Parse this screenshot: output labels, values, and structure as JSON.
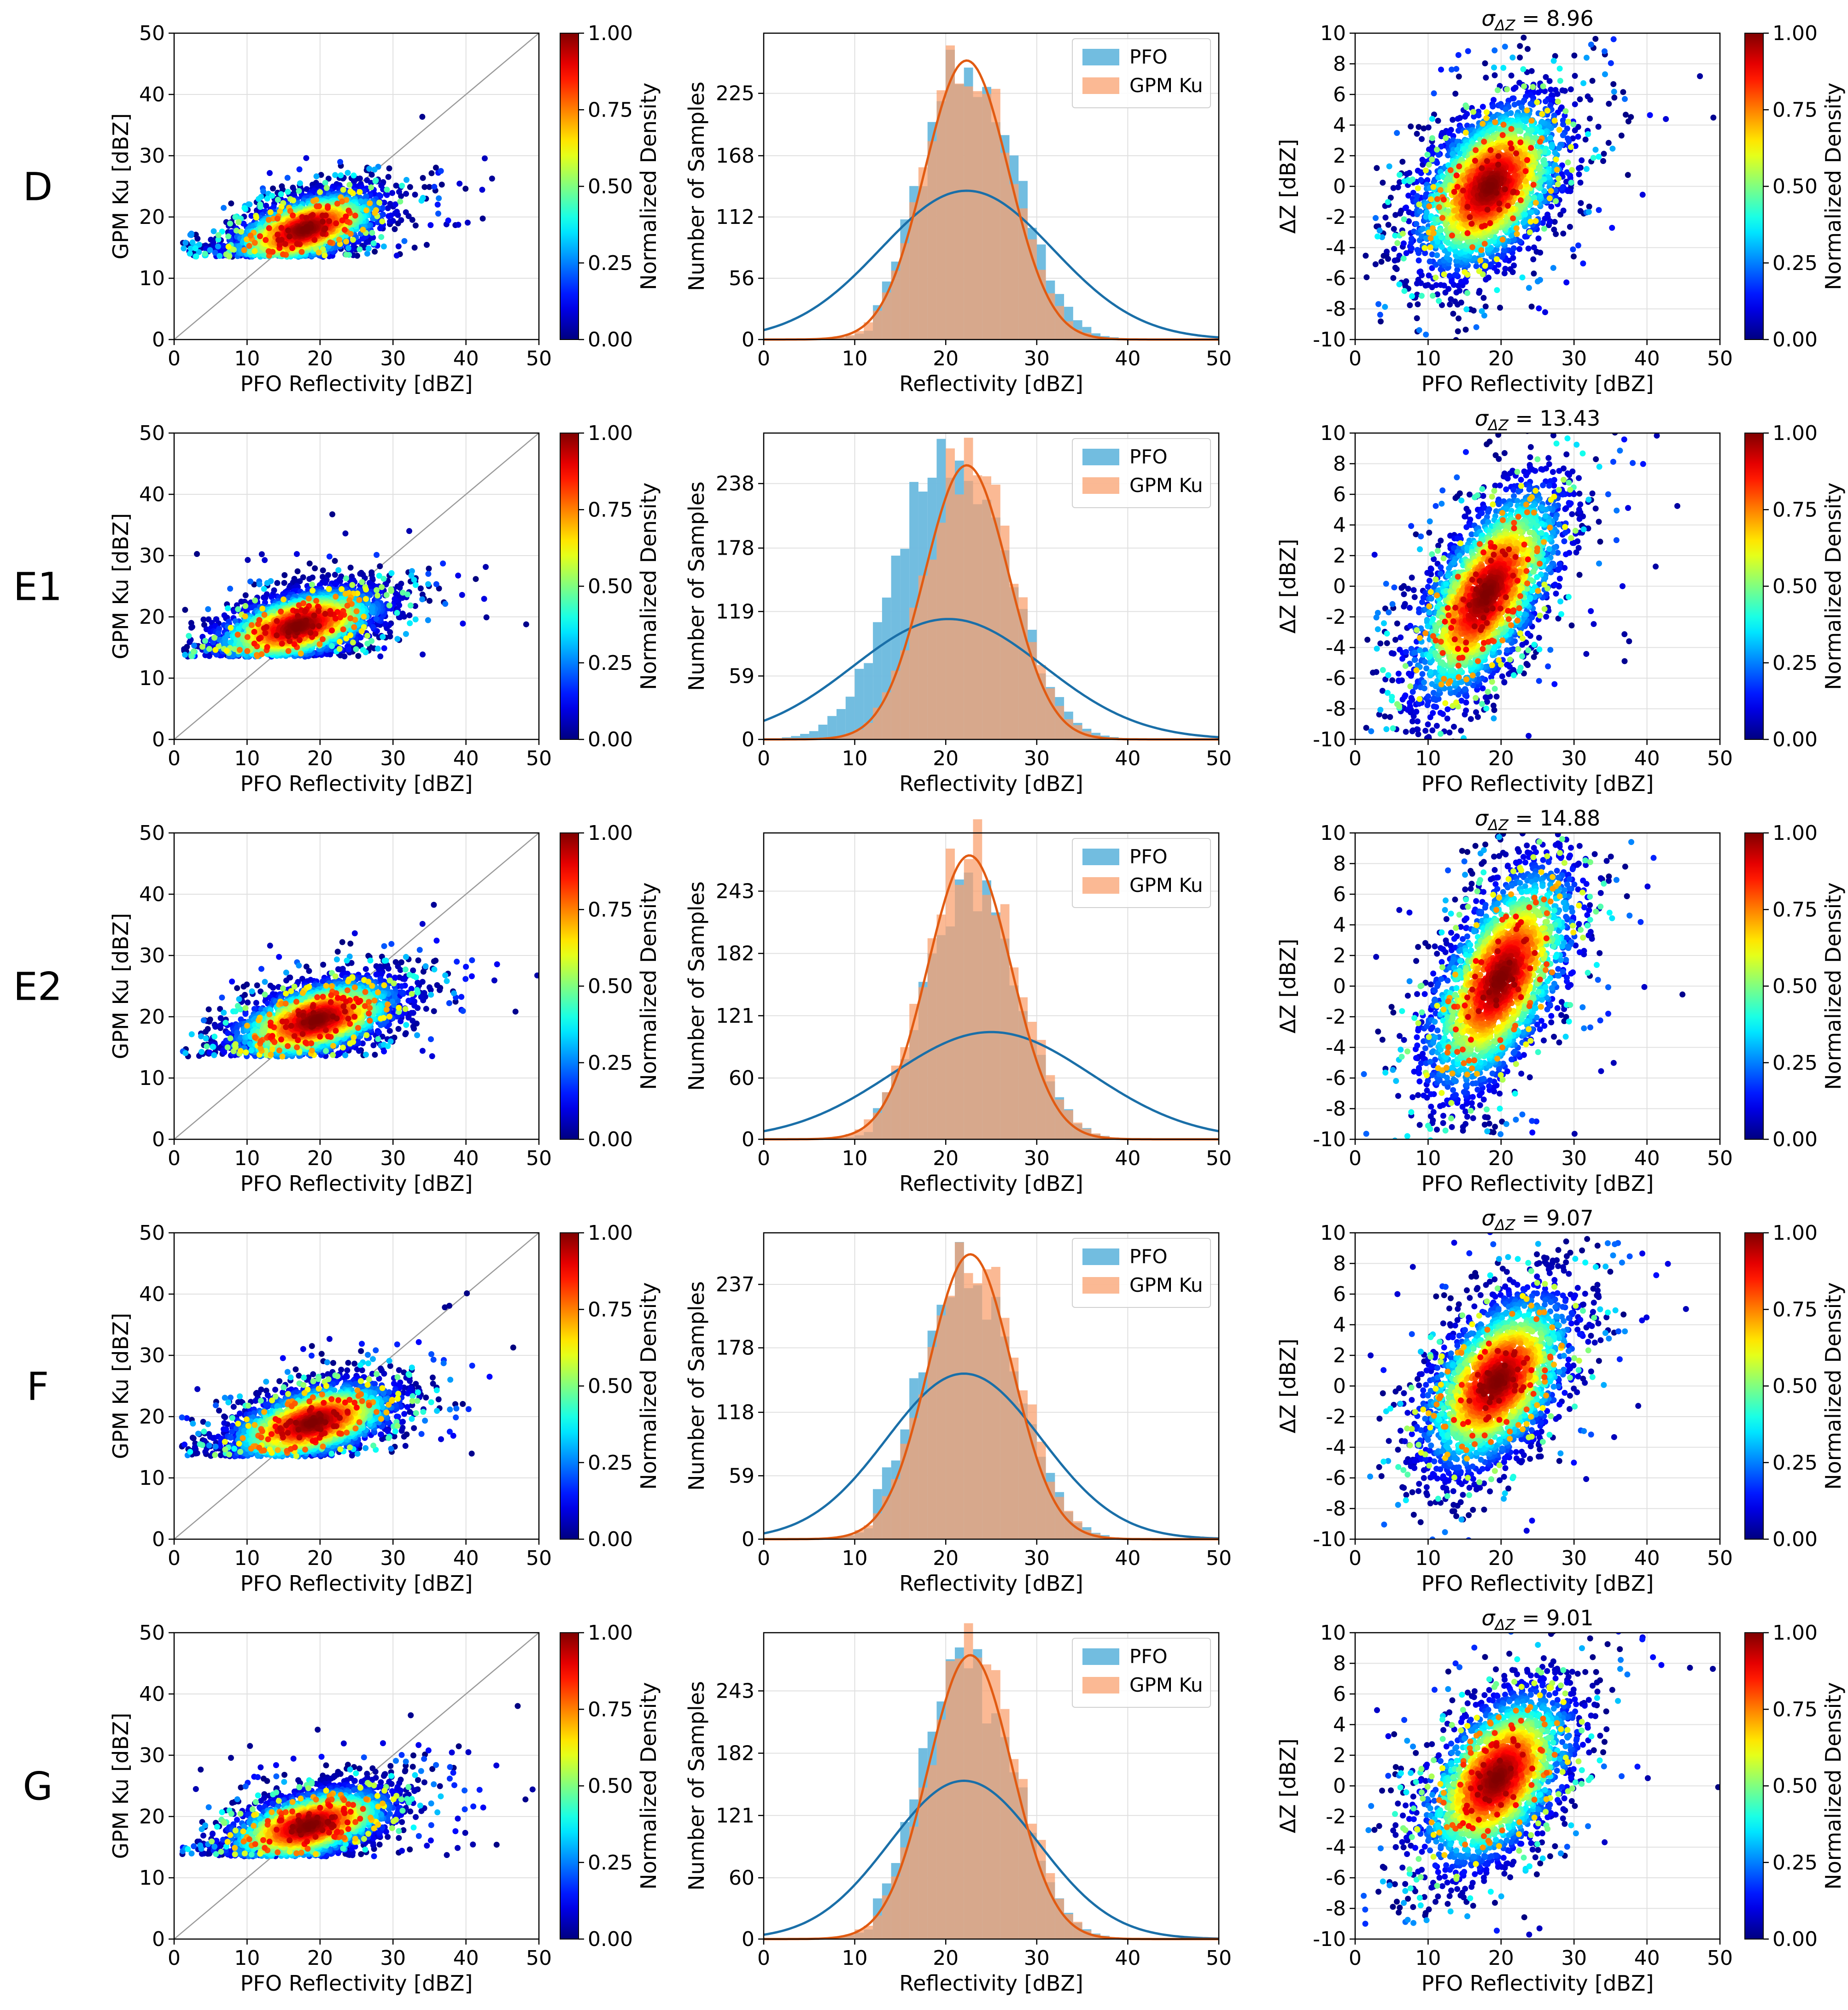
{
  "figure": {
    "row_labels": [
      "D",
      "E1",
      "E2",
      "F",
      "G"
    ],
    "colors": {
      "pfo_bar": "#6ab9de",
      "gpm_bar": "#f9a270",
      "pfo_line": "#1a6fa8",
      "gpm_line": "#e15b12",
      "grid": "#e0e0e0",
      "identity_line": "#9a9a9a"
    },
    "colorbar": {
      "label": "Normalized Density",
      "ticks": [
        "0.00",
        "0.25",
        "0.50",
        "0.75",
        "1.00"
      ],
      "colormap": "jet"
    }
  },
  "chart_data": [
    {
      "type": "scatter",
      "row": "D",
      "panel": "scatter",
      "xlabel": "PFO Reflectivity [dBZ]",
      "ylabel": "GPM Ku [dBZ]",
      "xlim": [
        0,
        50
      ],
      "ylim": [
        0,
        50
      ],
      "xticks": [
        0,
        10,
        20,
        30,
        40,
        50
      ],
      "yticks": [
        0,
        10,
        20,
        30,
        40,
        50
      ],
      "density_center": [
        18,
        18
      ],
      "density_spread": [
        5,
        3.3
      ],
      "correlation": 0.55,
      "identity_line": true,
      "grid": true
    },
    {
      "type": "bar",
      "row": "D",
      "panel": "histogram",
      "xlabel": "Reflectivity [dBZ]",
      "ylabel": "Number of Samples",
      "xlim": [
        0,
        50
      ],
      "ylim": [
        0,
        280
      ],
      "xticks": [
        0,
        10,
        20,
        30,
        40,
        50
      ],
      "yticks": [
        0,
        56,
        112,
        168,
        225
      ],
      "legend": {
        "position": "top-right",
        "entries": [
          "PFO",
          "GPM Ku"
        ]
      },
      "bin_width": 1,
      "series": [
        {
          "name": "PFO",
          "mean": 22.3,
          "sd": 4.9,
          "peak": 257,
          "fit_peak": 136,
          "fit_sd": 9.5
        },
        {
          "name": "GPM Ku",
          "mean": 22.3,
          "sd": 4.5,
          "peak": 262,
          "fit_peak": 255,
          "fit_sd": 4.6
        }
      ]
    },
    {
      "type": "scatter",
      "row": "D",
      "panel": "difference",
      "title": "σΔZ = 8.96",
      "xlabel": "PFO Reflectivity [dBZ]",
      "ylabel": "ΔZ [dBZ]",
      "xlim": [
        0,
        50
      ],
      "ylim": [
        -10,
        10
      ],
      "xticks": [
        0,
        10,
        20,
        30,
        40,
        50
      ],
      "yticks": [
        -10,
        -8,
        -6,
        -4,
        -2,
        0,
        2,
        4,
        6,
        8,
        10
      ],
      "density_center": [
        18.5,
        0
      ],
      "density_spread": [
        5,
        3
      ],
      "correlation": 0.45,
      "grid": true
    },
    {
      "type": "scatter",
      "row": "E1",
      "panel": "scatter",
      "xlabel": "PFO Reflectivity [dBZ]",
      "ylabel": "GPM Ku [dBZ]",
      "xlim": [
        0,
        50
      ],
      "ylim": [
        0,
        50
      ],
      "xticks": [
        0,
        10,
        20,
        30,
        40,
        50
      ],
      "yticks": [
        0,
        10,
        20,
        30,
        40,
        50
      ],
      "density_center": [
        17,
        18.5
      ],
      "density_spread": [
        5.5,
        3.3
      ],
      "correlation": 0.5,
      "identity_line": true,
      "grid": true
    },
    {
      "type": "bar",
      "row": "E1",
      "panel": "histogram",
      "xlabel": "Reflectivity [dBZ]",
      "ylabel": "Number of Samples",
      "xlim": [
        0,
        50
      ],
      "ylim": [
        0,
        285
      ],
      "xticks": [
        0,
        10,
        20,
        30,
        40,
        50
      ],
      "yticks": [
        0,
        59,
        119,
        178,
        238
      ],
      "legend": {
        "position": "top-right",
        "entries": [
          "PFO",
          "GPM Ku"
        ]
      },
      "bin_width": 1,
      "series": [
        {
          "name": "PFO",
          "mean": 20.3,
          "sd": 5.6,
          "peak": 275,
          "fit_peak": 112,
          "fit_sd": 10.5
        },
        {
          "name": "GPM Ku",
          "mean": 22.3,
          "sd": 4.6,
          "peak": 262,
          "fit_peak": 255,
          "fit_sd": 4.6
        }
      ]
    },
    {
      "type": "scatter",
      "row": "E1",
      "panel": "difference",
      "title": "σΔZ = 13.43",
      "xlabel": "PFO Reflectivity [dBZ]",
      "ylabel": "ΔZ [dBZ]",
      "xlim": [
        0,
        50
      ],
      "ylim": [
        -10,
        10
      ],
      "xticks": [
        0,
        10,
        20,
        30,
        40,
        50
      ],
      "yticks": [
        -10,
        -8,
        -6,
        -4,
        -2,
        0,
        2,
        4,
        6,
        8,
        10
      ],
      "density_center": [
        18,
        -0.5
      ],
      "density_spread": [
        5,
        3.8
      ],
      "correlation": 0.65,
      "grid": true
    },
    {
      "type": "scatter",
      "row": "E2",
      "panel": "scatter",
      "xlabel": "PFO Reflectivity [dBZ]",
      "ylabel": "GPM Ku [dBZ]",
      "xlim": [
        0,
        50
      ],
      "ylim": [
        0,
        50
      ],
      "xticks": [
        0,
        10,
        20,
        30,
        40,
        50
      ],
      "yticks": [
        0,
        10,
        20,
        30,
        40,
        50
      ],
      "density_center": [
        19.5,
        19.5
      ],
      "density_spread": [
        5.5,
        3.6
      ],
      "correlation": 0.5,
      "identity_line": true,
      "grid": true
    },
    {
      "type": "bar",
      "row": "E2",
      "panel": "histogram",
      "xlabel": "Reflectivity [dBZ]",
      "ylabel": "Number of Samples",
      "xlim": [
        0,
        50
      ],
      "ylim": [
        0,
        300
      ],
      "xticks": [
        0,
        10,
        20,
        30,
        40,
        50
      ],
      "yticks": [
        0,
        60,
        121,
        182,
        243
      ],
      "legend": {
        "position": "top-right",
        "entries": [
          "PFO",
          "GPM Ku"
        ]
      },
      "bin_width": 1,
      "series": [
        {
          "name": "PFO",
          "mean": 22.5,
          "sd": 4.8,
          "peak": 255,
          "fit_peak": 105,
          "fit_sd": 11,
          "fit_mean": 25
        },
        {
          "name": "GPM Ku",
          "mean": 22.6,
          "sd": 4.7,
          "peak": 285,
          "fit_peak": 278,
          "fit_sd": 4.6
        }
      ]
    },
    {
      "type": "scatter",
      "row": "E2",
      "panel": "difference",
      "title": "σΔZ = 14.88",
      "xlabel": "PFO Reflectivity [dBZ]",
      "ylabel": "ΔZ [dBZ]",
      "xlim": [
        0,
        50
      ],
      "ylim": [
        -10,
        10
      ],
      "xticks": [
        0,
        10,
        20,
        30,
        40,
        50
      ],
      "yticks": [
        -10,
        -8,
        -6,
        -4,
        -2,
        0,
        2,
        4,
        6,
        8,
        10
      ],
      "density_center": [
        20,
        0.5
      ],
      "density_spread": [
        5,
        4
      ],
      "correlation": 0.6,
      "grid": true
    },
    {
      "type": "scatter",
      "row": "F",
      "panel": "scatter",
      "xlabel": "PFO Reflectivity [dBZ]",
      "ylabel": "GPM Ku [dBZ]",
      "xlim": [
        0,
        50
      ],
      "ylim": [
        0,
        50
      ],
      "xticks": [
        0,
        10,
        20,
        30,
        40,
        50
      ],
      "yticks": [
        0,
        10,
        20,
        30,
        40,
        50
      ],
      "density_center": [
        19,
        19
      ],
      "density_spread": [
        5.5,
        3.5
      ],
      "correlation": 0.5,
      "identity_line": true,
      "grid": true
    },
    {
      "type": "bar",
      "row": "F",
      "panel": "histogram",
      "xlabel": "Reflectivity [dBZ]",
      "ylabel": "Number of Samples",
      "xlim": [
        0,
        50
      ],
      "ylim": [
        0,
        285
      ],
      "xticks": [
        0,
        10,
        20,
        30,
        40,
        50
      ],
      "yticks": [
        0,
        59,
        118,
        178,
        237
      ],
      "legend": {
        "position": "top-right",
        "entries": [
          "PFO",
          "GPM Ku"
        ]
      },
      "bin_width": 1,
      "series": [
        {
          "name": "PFO",
          "mean": 22,
          "sd": 5,
          "peak": 255,
          "fit_peak": 154,
          "fit_sd": 8.5
        },
        {
          "name": "GPM Ku",
          "mean": 22.7,
          "sd": 4.6,
          "peak": 270,
          "fit_peak": 265,
          "fit_sd": 4.6
        }
      ]
    },
    {
      "type": "scatter",
      "row": "F",
      "panel": "difference",
      "title": "σΔZ = 9.07",
      "xlabel": "PFO Reflectivity [dBZ]",
      "ylabel": "ΔZ [dBZ]",
      "xlim": [
        0,
        50
      ],
      "ylim": [
        -10,
        10
      ],
      "xticks": [
        0,
        10,
        20,
        30,
        40,
        50
      ],
      "yticks": [
        -10,
        -8,
        -6,
        -4,
        -2,
        0,
        2,
        4,
        6,
        8,
        10
      ],
      "density_center": [
        19.5,
        0.3
      ],
      "density_spread": [
        5,
        3.1
      ],
      "correlation": 0.5,
      "grid": true
    },
    {
      "type": "scatter",
      "row": "G",
      "panel": "scatter",
      "xlabel": "PFO Reflectivity [dBZ]",
      "ylabel": "GPM Ku [dBZ]",
      "xlim": [
        0,
        50
      ],
      "ylim": [
        0,
        50
      ],
      "xticks": [
        0,
        10,
        20,
        30,
        40,
        50
      ],
      "yticks": [
        0,
        10,
        20,
        30,
        40,
        50
      ],
      "density_center": [
        18.5,
        18.5
      ],
      "density_spread": [
        5.5,
        3.3
      ],
      "correlation": 0.5,
      "identity_line": true,
      "grid": true
    },
    {
      "type": "bar",
      "row": "G",
      "panel": "histogram",
      "xlabel": "Reflectivity [dBZ]",
      "ylabel": "Number of Samples",
      "xlim": [
        0,
        50
      ],
      "ylim": [
        0,
        300
      ],
      "xticks": [
        0,
        10,
        20,
        30,
        40,
        50
      ],
      "yticks": [
        0,
        60,
        121,
        182,
        243
      ],
      "legend": {
        "position": "top-right",
        "entries": [
          "PFO",
          "GPM Ku"
        ]
      },
      "bin_width": 1,
      "series": [
        {
          "name": "PFO",
          "mean": 22,
          "sd": 4.9,
          "peak": 272,
          "fit_peak": 155,
          "fit_sd": 8.2
        },
        {
          "name": "GPM Ku",
          "mean": 22.7,
          "sd": 4.6,
          "peak": 285,
          "fit_peak": 278,
          "fit_sd": 4.6
        }
      ]
    },
    {
      "type": "scatter",
      "row": "G",
      "panel": "difference",
      "title": "σΔZ = 9.01",
      "xlabel": "PFO Reflectivity [dBZ]",
      "ylabel": "ΔZ [dBZ]",
      "xlim": [
        0,
        50
      ],
      "ylim": [
        -10,
        10
      ],
      "xticks": [
        0,
        10,
        20,
        30,
        40,
        50
      ],
      "yticks": [
        -10,
        -8,
        -6,
        -4,
        -2,
        0,
        2,
        4,
        6,
        8,
        10
      ],
      "density_center": [
        19.5,
        0.5
      ],
      "density_spread": [
        5,
        3.1
      ],
      "correlation": 0.5,
      "grid": true
    }
  ]
}
